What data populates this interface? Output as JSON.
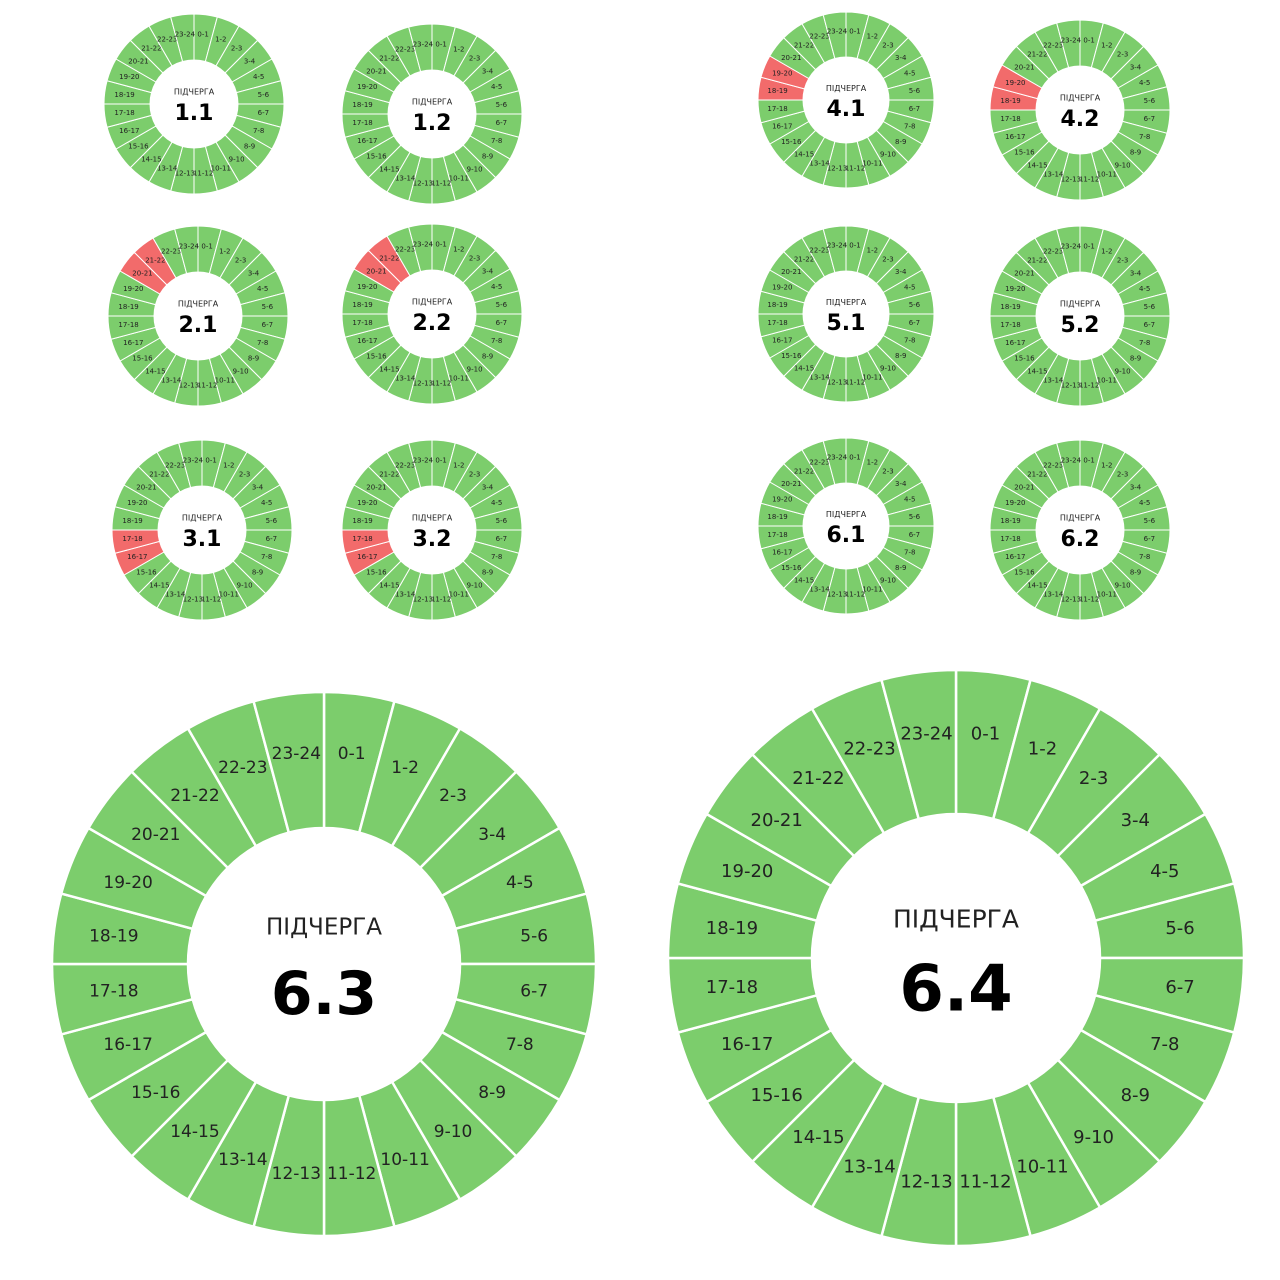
{
  "title_word": "ПІДЧЕРГА",
  "colors": {
    "on": "#7ccd6c",
    "off": "#f26b6b",
    "separator": "#ffffff",
    "center": "#ffffff",
    "text": "#222222"
  },
  "chart_data": [
    {
      "type": "pie",
      "name": "1.1",
      "hours": [
        "0-1",
        "1-2",
        "2-3",
        "3-4",
        "4-5",
        "5-6",
        "6-7",
        "7-8",
        "8-9",
        "9-10",
        "10-11",
        "11-12",
        "12-13",
        "13-14",
        "14-15",
        "15-16",
        "16-17",
        "17-18",
        "18-19",
        "19-20",
        "20-21",
        "21-22",
        "22-23",
        "23-24"
      ],
      "outage_hours": []
    },
    {
      "type": "pie",
      "name": "1.2",
      "hours": [
        "0-1",
        "1-2",
        "2-3",
        "3-4",
        "4-5",
        "5-6",
        "6-7",
        "7-8",
        "8-9",
        "9-10",
        "10-11",
        "11-12",
        "12-13",
        "13-14",
        "14-15",
        "15-16",
        "16-17",
        "17-18",
        "18-19",
        "19-20",
        "20-21",
        "21-22",
        "22-23",
        "23-24"
      ],
      "outage_hours": []
    },
    {
      "type": "pie",
      "name": "2.1",
      "hours": [
        "0-1",
        "1-2",
        "2-3",
        "3-4",
        "4-5",
        "5-6",
        "6-7",
        "7-8",
        "8-9",
        "9-10",
        "10-11",
        "11-12",
        "12-13",
        "13-14",
        "14-15",
        "15-16",
        "16-17",
        "17-18",
        "18-19",
        "19-20",
        "20-21",
        "21-22",
        "22-23",
        "23-24"
      ],
      "outage_hours": [
        "20-21",
        "21-22"
      ]
    },
    {
      "type": "pie",
      "name": "2.2",
      "hours": [
        "0-1",
        "1-2",
        "2-3",
        "3-4",
        "4-5",
        "5-6",
        "6-7",
        "7-8",
        "8-9",
        "9-10",
        "10-11",
        "11-12",
        "12-13",
        "13-14",
        "14-15",
        "15-16",
        "16-17",
        "17-18",
        "18-19",
        "19-20",
        "20-21",
        "21-22",
        "22-23",
        "23-24"
      ],
      "outage_hours": [
        "20-21",
        "21-22"
      ]
    },
    {
      "type": "pie",
      "name": "3.1",
      "hours": [
        "0-1",
        "1-2",
        "2-3",
        "3-4",
        "4-5",
        "5-6",
        "6-7",
        "7-8",
        "8-9",
        "9-10",
        "10-11",
        "11-12",
        "12-13",
        "13-14",
        "14-15",
        "15-16",
        "16-17",
        "17-18",
        "18-19",
        "19-20",
        "20-21",
        "21-22",
        "22-23",
        "23-24"
      ],
      "outage_hours": [
        "16-17",
        "17-18"
      ]
    },
    {
      "type": "pie",
      "name": "3.2",
      "hours": [
        "0-1",
        "1-2",
        "2-3",
        "3-4",
        "4-5",
        "5-6",
        "6-7",
        "7-8",
        "8-9",
        "9-10",
        "10-11",
        "11-12",
        "12-13",
        "13-14",
        "14-15",
        "15-16",
        "16-17",
        "17-18",
        "18-19",
        "19-20",
        "20-21",
        "21-22",
        "22-23",
        "23-24"
      ],
      "outage_hours": [
        "16-17",
        "17-18"
      ]
    },
    {
      "type": "pie",
      "name": "4.1",
      "hours": [
        "0-1",
        "1-2",
        "2-3",
        "3-4",
        "4-5",
        "5-6",
        "6-7",
        "7-8",
        "8-9",
        "9-10",
        "10-11",
        "11-12",
        "12-13",
        "13-14",
        "14-15",
        "15-16",
        "16-17",
        "17-18",
        "18-19",
        "19-20",
        "20-21",
        "21-22",
        "22-23",
        "23-24"
      ],
      "outage_hours": [
        "18-19",
        "19-20"
      ]
    },
    {
      "type": "pie",
      "name": "4.2",
      "hours": [
        "0-1",
        "1-2",
        "2-3",
        "3-4",
        "4-5",
        "5-6",
        "6-7",
        "7-8",
        "8-9",
        "9-10",
        "10-11",
        "11-12",
        "12-13",
        "13-14",
        "14-15",
        "15-16",
        "16-17",
        "17-18",
        "18-19",
        "19-20",
        "20-21",
        "21-22",
        "22-23",
        "23-24"
      ],
      "outage_hours": [
        "18-19",
        "19-20"
      ]
    },
    {
      "type": "pie",
      "name": "5.1",
      "hours": [
        "0-1",
        "1-2",
        "2-3",
        "3-4",
        "4-5",
        "5-6",
        "6-7",
        "7-8",
        "8-9",
        "9-10",
        "10-11",
        "11-12",
        "12-13",
        "13-14",
        "14-15",
        "15-16",
        "16-17",
        "17-18",
        "18-19",
        "19-20",
        "20-21",
        "21-22",
        "22-23",
        "23-24"
      ],
      "outage_hours": []
    },
    {
      "type": "pie",
      "name": "5.2",
      "hours": [
        "0-1",
        "1-2",
        "2-3",
        "3-4",
        "4-5",
        "5-6",
        "6-7",
        "7-8",
        "8-9",
        "9-10",
        "10-11",
        "11-12",
        "12-13",
        "13-14",
        "14-15",
        "15-16",
        "16-17",
        "17-18",
        "18-19",
        "19-20",
        "20-21",
        "21-22",
        "22-23",
        "23-24"
      ],
      "outage_hours": []
    },
    {
      "type": "pie",
      "name": "6.1",
      "hours": [
        "0-1",
        "1-2",
        "2-3",
        "3-4",
        "4-5",
        "5-6",
        "6-7",
        "7-8",
        "8-9",
        "9-10",
        "10-11",
        "11-12",
        "12-13",
        "13-14",
        "14-15",
        "15-16",
        "16-17",
        "17-18",
        "18-19",
        "19-20",
        "20-21",
        "21-22",
        "22-23",
        "23-24"
      ],
      "outage_hours": []
    },
    {
      "type": "pie",
      "name": "6.2",
      "hours": [
        "0-1",
        "1-2",
        "2-3",
        "3-4",
        "4-5",
        "5-6",
        "6-7",
        "7-8",
        "8-9",
        "9-10",
        "10-11",
        "11-12",
        "12-13",
        "13-14",
        "14-15",
        "15-16",
        "16-17",
        "17-18",
        "18-19",
        "19-20",
        "20-21",
        "21-22",
        "22-23",
        "23-24"
      ],
      "outage_hours": []
    },
    {
      "type": "pie",
      "name": "6.3",
      "hours": [
        "0-1",
        "1-2",
        "2-3",
        "3-4",
        "4-5",
        "5-6",
        "6-7",
        "7-8",
        "8-9",
        "9-10",
        "10-11",
        "11-12",
        "12-13",
        "13-14",
        "14-15",
        "15-16",
        "16-17",
        "17-18",
        "18-19",
        "19-20",
        "20-21",
        "21-22",
        "22-23",
        "23-24"
      ],
      "outage_hours": []
    },
    {
      "type": "pie",
      "name": "6.4",
      "hours": [
        "0-1",
        "1-2",
        "2-3",
        "3-4",
        "4-5",
        "5-6",
        "6-7",
        "7-8",
        "8-9",
        "9-10",
        "10-11",
        "11-12",
        "12-13",
        "13-14",
        "14-15",
        "15-16",
        "16-17",
        "17-18",
        "18-19",
        "19-20",
        "20-21",
        "21-22",
        "22-23",
        "23-24"
      ],
      "outage_hours": []
    }
  ]
}
